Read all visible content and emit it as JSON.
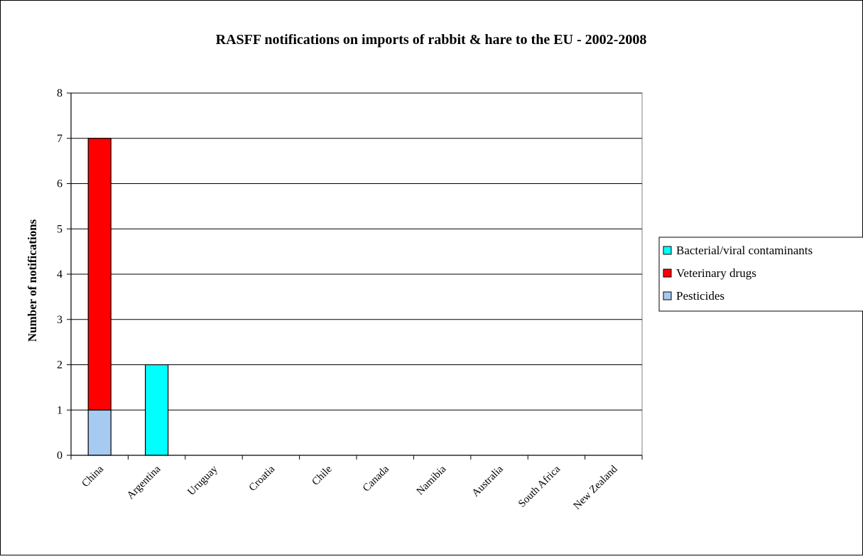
{
  "chart_data": {
    "type": "bar",
    "stacked": true,
    "title": "RASFF notifications on imports of rabbit & hare to the EU - 2002-2008",
    "xlabel": "",
    "ylabel": "Number of notifications",
    "ylim": [
      0,
      8
    ],
    "yticks": [
      "0",
      "1",
      "2",
      "3",
      "4",
      "5",
      "6",
      "7",
      "8"
    ],
    "grid": true,
    "legend_position": "right",
    "categories": [
      "China",
      "Argentina",
      "Uruguay",
      "Croatia",
      "Chile",
      "Canada",
      "Namibia",
      "Australia",
      "South Africa",
      "New Zealand"
    ],
    "series": [
      {
        "name": "Pesticides",
        "color": "#a6caf0",
        "values": [
          1,
          0,
          0,
          0,
          0,
          0,
          0,
          0,
          0,
          0
        ]
      },
      {
        "name": "Veterinary drugs",
        "color": "#ff0000",
        "values": [
          6,
          0,
          0,
          0,
          0,
          0,
          0,
          0,
          0,
          0
        ]
      },
      {
        "name": "Bacterial/viral contaminants",
        "color": "#00ffff",
        "values": [
          0,
          2,
          0,
          0,
          0,
          0,
          0,
          0,
          0,
          0
        ]
      }
    ],
    "legend_order": [
      "Bacterial/viral contaminants",
      "Veterinary drugs",
      "Pesticides"
    ]
  }
}
